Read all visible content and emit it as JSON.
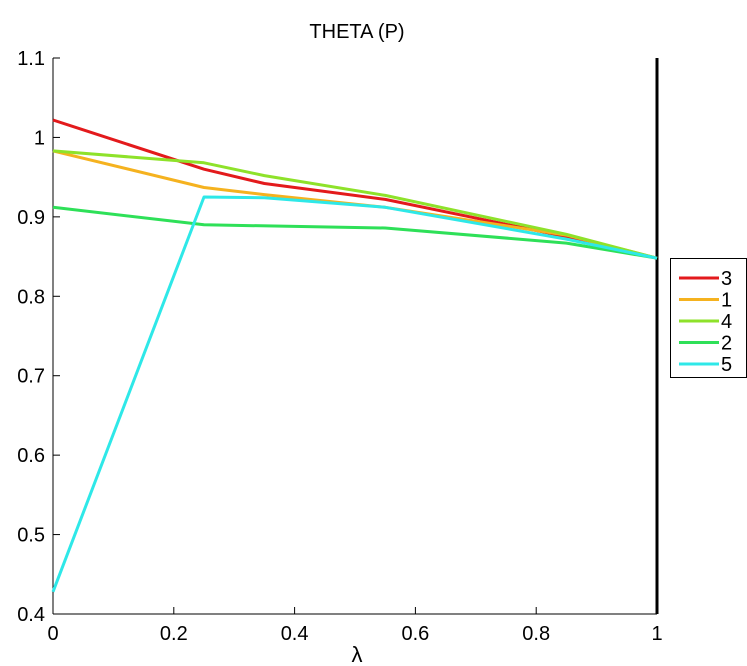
{
  "chart_data": {
    "type": "line",
    "title": "THETA (P)",
    "xlabel": "λ",
    "ylabel": "",
    "xlim": [
      0,
      1
    ],
    "ylim": [
      0.4,
      1.1
    ],
    "xticks": [
      0,
      0.2,
      0.4,
      0.6,
      0.8,
      1
    ],
    "xtick_labels": [
      "0",
      "0.2",
      "0.4",
      "0.6",
      "0.8",
      "1"
    ],
    "yticks": [
      0.4,
      0.5,
      0.6,
      0.7,
      0.8,
      0.9,
      1,
      1.1
    ],
    "ytick_labels": [
      "0.4",
      "0.5",
      "0.6",
      "0.7",
      "0.8",
      "0.9",
      "1",
      "1.1"
    ],
    "grid": false,
    "legend_position": "outside-right",
    "series": [
      {
        "name": "3",
        "color": "#e31a1c",
        "points": [
          [
            0,
            1.022
          ],
          [
            0.25,
            0.96
          ],
          [
            0.35,
            0.942
          ],
          [
            0.55,
            0.922
          ],
          [
            0.85,
            0.875
          ],
          [
            1,
            0.848
          ]
        ]
      },
      {
        "name": "1",
        "color": "#f5b21f",
        "points": [
          [
            0,
            0.983
          ],
          [
            0.25,
            0.937
          ],
          [
            0.35,
            0.928
          ],
          [
            0.55,
            0.912
          ],
          [
            0.85,
            0.877
          ],
          [
            1,
            0.848
          ]
        ]
      },
      {
        "name": "4",
        "color": "#8ee22a",
        "points": [
          [
            0,
            0.983
          ],
          [
            0.25,
            0.968
          ],
          [
            0.35,
            0.952
          ],
          [
            0.55,
            0.927
          ],
          [
            0.85,
            0.878
          ],
          [
            1,
            0.848
          ]
        ]
      },
      {
        "name": "2",
        "color": "#2ee058",
        "points": [
          [
            0,
            0.912
          ],
          [
            0.25,
            0.89
          ],
          [
            0.55,
            0.886
          ],
          [
            0.85,
            0.867
          ],
          [
            1,
            0.848
          ]
        ]
      },
      {
        "name": "5",
        "color": "#2ee8e8",
        "points": [
          [
            0,
            0.428
          ],
          [
            0.25,
            0.925
          ],
          [
            0.35,
            0.924
          ],
          [
            0.55,
            0.912
          ],
          [
            0.85,
            0.872
          ],
          [
            1,
            0.848
          ]
        ]
      }
    ]
  }
}
